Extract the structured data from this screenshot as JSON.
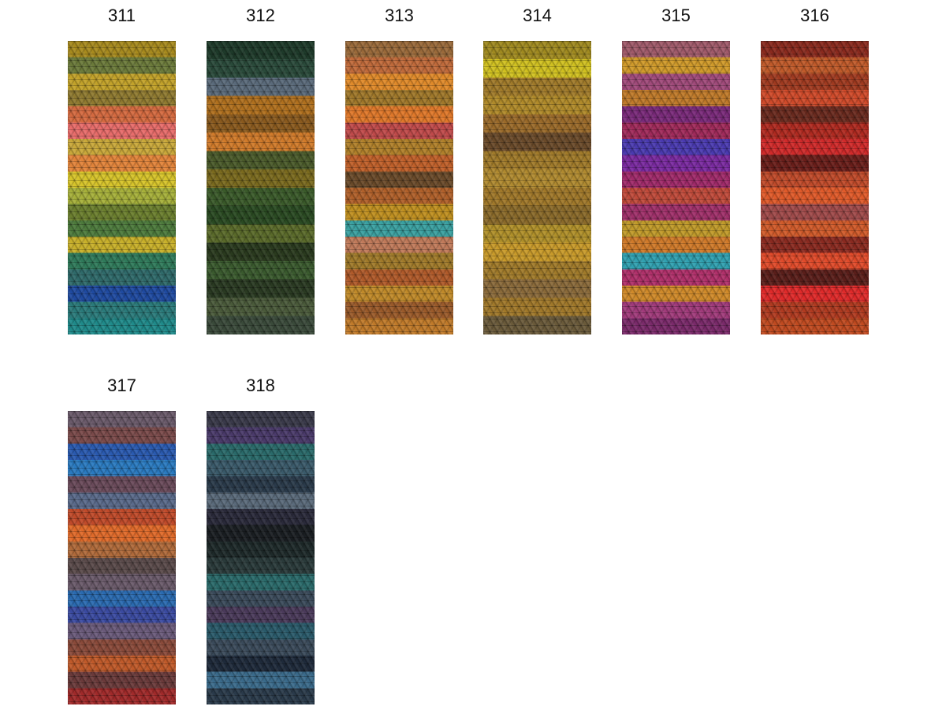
{
  "swatches": [
    {
      "label": "311",
      "colors": [
        "#a78a1e",
        "#6b7a3a",
        "#c2a22a",
        "#8f7a30",
        "#d56a40",
        "#e86c6a",
        "#c9a83a",
        "#e2843a",
        "#d7c42a",
        "#a6b03a",
        "#6b7f2e",
        "#4d7a3c",
        "#c8b02a",
        "#2f7a5a",
        "#2f6a6a",
        "#1f4aa0",
        "#2a7a7a",
        "#1f8a8a"
      ]
    },
    {
      "label": "312",
      "colors": [
        "#1e3a2a",
        "#2a4a3a",
        "#5a6a7a",
        "#b0701e",
        "#8a5a1e",
        "#d07a2a",
        "#4a5a2a",
        "#7a6a1e",
        "#3a5a2a",
        "#2a4a22",
        "#5a6a2a",
        "#2a3a1e",
        "#3a5a2e",
        "#2a3a22",
        "#4a5a3a",
        "#3a4a3a"
      ]
    },
    {
      "label": "313",
      "colors": [
        "#9a6a3a",
        "#c06a3a",
        "#e08a2a",
        "#a0782a",
        "#e0782a",
        "#c04a4a",
        "#b0802a",
        "#c0602a",
        "#6a4a2a",
        "#b0602a",
        "#c09020",
        "#3aa0a0",
        "#c07a5a",
        "#a07a2a",
        "#b05a2a",
        "#c08a2a",
        "#9a5a2a",
        "#c07a2a"
      ]
    },
    {
      "label": "314",
      "colors": [
        "#a08a20",
        "#d0c020",
        "#a07a2a",
        "#b08a2a",
        "#9a6a2a",
        "#6a4a2a",
        "#a07a2a",
        "#b08a30",
        "#a0782a",
        "#8a6a2a",
        "#b0902a",
        "#c89a2a",
        "#a07a2a",
        "#8a6a3a",
        "#a0782a",
        "#6a5a3a"
      ]
    },
    {
      "label": "315",
      "colors": [
        "#a05a6a",
        "#d09a2a",
        "#a04a7a",
        "#c07a2a",
        "#7a2a7a",
        "#a02a5a",
        "#4a3ab0",
        "#7a2aa0",
        "#a02a6a",
        "#c04a3a",
        "#a0306a",
        "#c09a2a",
        "#d07a2a",
        "#30a0b0",
        "#b0306a",
        "#d08a2a",
        "#a03a7a",
        "#7a2a6a"
      ]
    },
    {
      "label": "316",
      "colors": [
        "#8a2a1e",
        "#c05a2a",
        "#a03a20",
        "#d04a2a",
        "#6a2a1e",
        "#b02a20",
        "#d02a2a",
        "#6a1e1a",
        "#c04a2a",
        "#e05a2a",
        "#a04a4a",
        "#d05a2a",
        "#8a2a20",
        "#e04a2a",
        "#5a1e1a",
        "#e02a2a",
        "#b03a20",
        "#c04a20"
      ]
    },
    {
      "label": "317",
      "colors": [
        "#6a5a6a",
        "#7a4a4a",
        "#2a5ab0",
        "#2a7ac0",
        "#6a4a5a",
        "#5a6a8a",
        "#c04a2a",
        "#e06a2a",
        "#b06a3a",
        "#5a4a4a",
        "#6a5a6a",
        "#2a6ab0",
        "#3a4aa0",
        "#6a5a7a",
        "#8a4a3a",
        "#c05a2a",
        "#6a3a3a",
        "#a02a2a"
      ]
    },
    {
      "label": "318",
      "colors": [
        "#3a3a4a",
        "#4a3a6a",
        "#2a6a6a",
        "#3a5a6a",
        "#2a3a4a",
        "#5a6a7a",
        "#2a2a3a",
        "#1a1e22",
        "#1e2a2a",
        "#2a3a3a",
        "#2a6a6a",
        "#3a4a5a",
        "#4a3a5a",
        "#2a5a6a",
        "#3a4a5a",
        "#1e2a3a",
        "#3a6a8a",
        "#2a3a4a"
      ]
    }
  ]
}
